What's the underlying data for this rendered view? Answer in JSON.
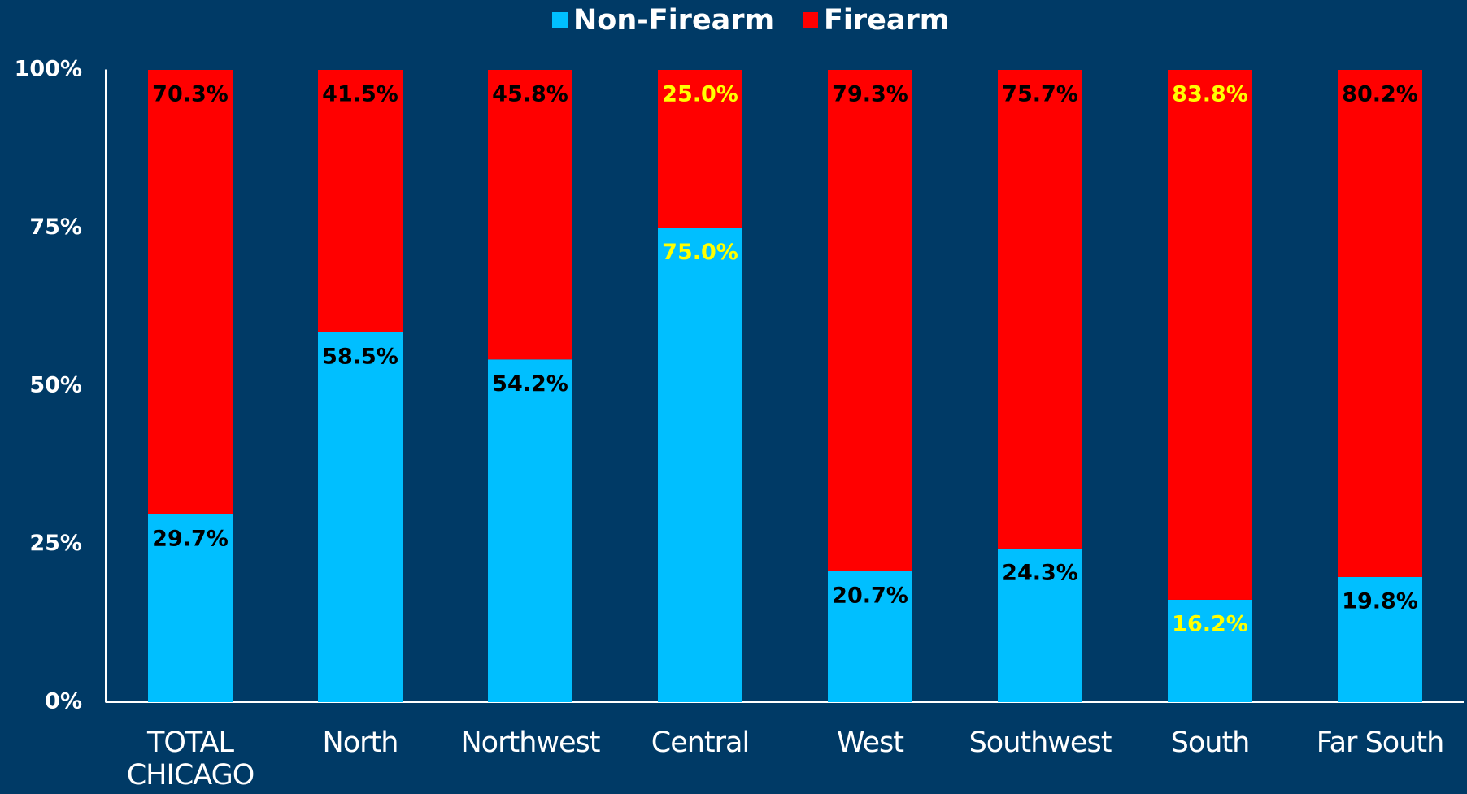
{
  "chart_data": {
    "type": "stacked_bar",
    "categories": [
      "TOTAL CHICAGO",
      "North",
      "Northwest",
      "Central",
      "West",
      "Southwest",
      "South",
      "Far South"
    ],
    "series": [
      {
        "name": "Non-Firearm",
        "color": "#00bfff",
        "values": [
          29.7,
          58.5,
          54.2,
          75.0,
          20.7,
          24.3,
          16.2,
          19.8
        ],
        "value_labels": [
          "29.7%",
          "58.5%",
          "54.2%",
          "75.0%",
          "20.7%",
          "24.3%",
          "16.2%",
          "19.8%"
        ],
        "label_colors": [
          "#000000",
          "#000000",
          "#000000",
          "#ffff00",
          "#000000",
          "#000000",
          "#ffff00",
          "#000000"
        ]
      },
      {
        "name": "Firearm",
        "color": "#ff0000",
        "values": [
          70.3,
          41.5,
          45.8,
          25.0,
          79.3,
          75.7,
          83.8,
          80.2
        ],
        "value_labels": [
          "70.3%",
          "41.5%",
          "45.8%",
          "25.0%",
          "79.3%",
          "75.7%",
          "83.8%",
          "80.2%"
        ],
        "label_colors": [
          "#000000",
          "#000000",
          "#000000",
          "#ffff00",
          "#000000",
          "#000000",
          "#ffff00",
          "#000000"
        ]
      }
    ],
    "ylim": [
      0,
      100
    ],
    "yticks": [
      {
        "value": 0,
        "label": "0%"
      },
      {
        "value": 25,
        "label": "25%"
      },
      {
        "value": 50,
        "label": "50%"
      },
      {
        "value": 75,
        "label": "75%"
      },
      {
        "value": 100,
        "label": "100%"
      }
    ],
    "legend": "top",
    "background": "#003a66"
  }
}
